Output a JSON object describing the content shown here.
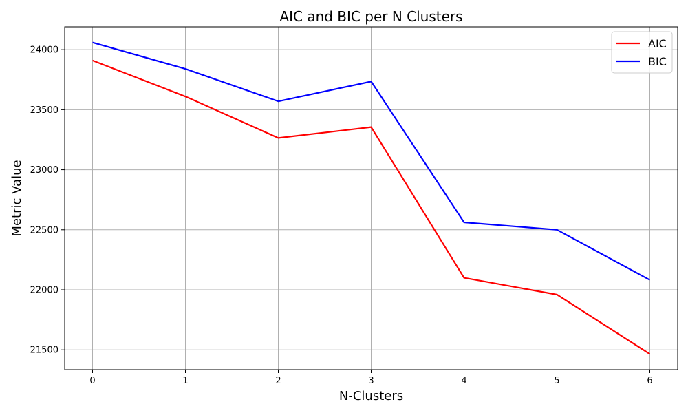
{
  "chart_data": {
    "type": "line",
    "title": "AIC and BIC per N Clusters",
    "xlabel": "N-Clusters",
    "ylabel": "Metric Value",
    "x": [
      0,
      1,
      2,
      3,
      4,
      5,
      6
    ],
    "xlim": [
      -0.3,
      6.3
    ],
    "ylim": [
      21335,
      24190
    ],
    "yticks": [
      21500,
      22000,
      22500,
      23000,
      23500,
      24000
    ],
    "xticks": [
      0,
      1,
      2,
      3,
      4,
      5,
      6
    ],
    "grid": true,
    "legend_position": "top-right",
    "series": [
      {
        "name": "AIC",
        "color": "#ff0000",
        "values": [
          23910,
          23610,
          23265,
          23355,
          22100,
          21960,
          21465
        ]
      },
      {
        "name": "BIC",
        "color": "#0000ff",
        "values": [
          24060,
          23840,
          23570,
          23735,
          22562,
          22500,
          22082
        ]
      }
    ]
  }
}
